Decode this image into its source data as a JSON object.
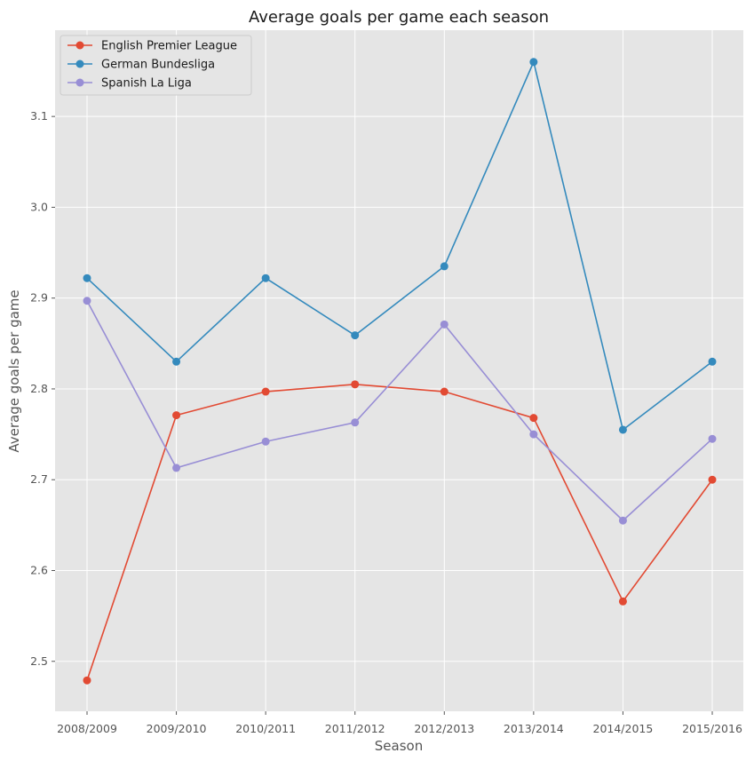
{
  "chart_data": {
    "type": "line",
    "title": "Average goals per game each season",
    "xlabel": "Season",
    "ylabel": "Average goals per game",
    "categories": [
      "2008/2009",
      "2009/2010",
      "2010/2011",
      "2011/2012",
      "2012/2013",
      "2013/2014",
      "2014/2015",
      "2015/2016"
    ],
    "ylim": [
      2.445,
      3.195
    ],
    "yticks": [
      2.5,
      2.6,
      2.7,
      2.8,
      2.9,
      3.0,
      3.1
    ],
    "grid": true,
    "legend_position": "top-left",
    "series": [
      {
        "name": "English Premier League",
        "color": "#E24A33",
        "values": [
          2.479,
          2.771,
          2.797,
          2.805,
          2.797,
          2.768,
          2.566,
          2.7
        ]
      },
      {
        "name": "German Bundesliga",
        "color": "#348ABD",
        "values": [
          2.922,
          2.83,
          2.922,
          2.859,
          2.935,
          3.16,
          2.755,
          2.83
        ]
      },
      {
        "name": "Spanish La Liga",
        "color": "#988ED5",
        "values": [
          2.897,
          2.713,
          2.742,
          2.763,
          2.871,
          2.75,
          2.655,
          2.745
        ]
      }
    ]
  }
}
